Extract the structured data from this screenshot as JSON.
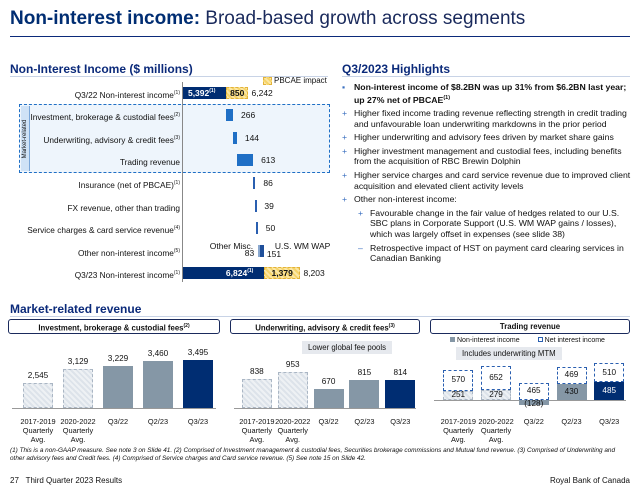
{
  "header": {
    "title_bold": "Non-interest income:",
    "title_rest": " Broad-based growth across segments"
  },
  "left": {
    "section": "Non-Interest Income ($ millions)",
    "pbcae_legend": "PBCAE impact",
    "market_related": "Market-related"
  },
  "highlights": {
    "section": "Q3/2023 Highlights",
    "items": [
      {
        "marker": "▪",
        "text": "Non-interest income of $8.2BN was up 31% from $6.2BN last year; up 27% net of PBCAE",
        "sup": "(1)",
        "bold": true,
        "level": 0
      },
      {
        "marker": "+",
        "text": "Higher fixed income trading revenue reflecting strength in credit trading and unfavourable loan underwriting markdowns in the prior period",
        "level": 0
      },
      {
        "marker": "+",
        "text": "Higher underwriting and advisory fees driven by market share gains",
        "level": 0
      },
      {
        "marker": "+",
        "text": "Higher investment management and custodial fees, including benefits from the acquisition of RBC Brewin Dolphin",
        "level": 0
      },
      {
        "marker": "+",
        "text": "Higher service charges and card service revenue due to improved client acquisition and elevated client activity levels",
        "level": 0
      },
      {
        "marker": "+",
        "text": "Other non-interest income:",
        "level": 0
      },
      {
        "marker": "+",
        "text": "Favourable change in the fair value of hedges related to our U.S. SBC plans in Corporate Support (U.S. WM WAP gains / losses), which was largely offset in expenses (see slide 38)",
        "level": 1
      },
      {
        "marker": "–",
        "text": "Retrospective impact of HST on payment card clearing services in Canadian Banking",
        "level": 1
      }
    ]
  },
  "market": {
    "section": "Market-related revenue"
  },
  "footnote": "(1) This is a non-GAAP measure. See note 3 on Slide 41. (2) Comprised of Investment management & custodial fees, Securities brokerage commissions and Mutual fund revenue. (3) Comprised of Underwriting and other advisory fees and Credit fees. (4) Comprised of Service charges and Card service revenue. (5) See note 15 on Slide 42.",
  "footer": {
    "page": "27",
    "deck": "Third Quarter 2023 Results",
    "company": "Royal Bank of Canada"
  },
  "colors": {
    "navy": "#002d72",
    "blue": "#1f6fc5",
    "gray": "#8597a6",
    "pbcae": "#f6d46a"
  },
  "chart_data": [
    {
      "type": "waterfall",
      "title": "Non-Interest Income ($ millions)",
      "start": {
        "label": "Q3/22 Non-interest income",
        "value": 5392,
        "value_label": "5,392",
        "sup": "(1)",
        "pbcae": 850,
        "pbcae_label": "850",
        "total_label": "6,242"
      },
      "steps": [
        {
          "label": "Investment, brokerage & custodial fees",
          "sup": "(2)",
          "value": 266,
          "value_label": "266",
          "group": "market"
        },
        {
          "label": "Underwriting, advisory & credit fees",
          "sup": "(3)",
          "value": 144,
          "value_label": "144",
          "group": "market"
        },
        {
          "label": "Trading revenue",
          "sup": "",
          "value": 613,
          "value_label": "613",
          "group": "market"
        },
        {
          "label": "Insurance (net of PBCAE)",
          "sup": "(1)",
          "value": 86,
          "value_label": "86"
        },
        {
          "label": "FX revenue, other than trading",
          "sup": "",
          "value": 39,
          "value_label": "39"
        },
        {
          "label": "Service charges & card service revenue",
          "sup": "(4)",
          "value": 50,
          "value_label": "50"
        },
        {
          "label": "Other non-interest income",
          "sup": "(5)",
          "value": 234,
          "parts": [
            {
              "label": "Other Misc.",
              "value": 83,
              "value_label": "83"
            },
            {
              "label": "U.S. WM WAP",
              "value": 151,
              "value_label": "151"
            }
          ]
        }
      ],
      "end": {
        "label": "Q3/23 Non-interest income",
        "value": 6824,
        "value_label": "6,824",
        "sup": "(1)",
        "pbcae": 1379,
        "pbcae_label": "1,379",
        "total_label": "8,203"
      }
    },
    {
      "type": "bar",
      "title": "Investment, brokerage & custodial fees",
      "title_sup": "(2)",
      "categories": [
        "2017-2019 Quarterly Avg.",
        "2020-2022 Quarterly Avg.",
        "Q3/22",
        "Q2/23",
        "Q3/23"
      ],
      "values": [
        2545,
        3129,
        3229,
        3460,
        3495
      ],
      "labels": [
        "2,545",
        "3,129",
        "3,229",
        "3,460",
        "3,495"
      ]
    },
    {
      "type": "bar",
      "title": "Underwriting, advisory & credit fees",
      "title_sup": "(3)",
      "categories": [
        "2017-2019 Quarterly Avg.",
        "2020-2022 Quarterly Avg.",
        "Q3/22",
        "Q2/23",
        "Q3/23"
      ],
      "values": [
        838,
        953,
        670,
        815,
        814
      ],
      "labels": [
        "838",
        "953",
        "670",
        "815",
        "814"
      ],
      "annotation": "Lower global fee pools"
    },
    {
      "type": "stacked-bar",
      "title": "Trading revenue",
      "categories": [
        "2017-2019 Quarterly Avg.",
        "2020-2022 Quarterly Avg.",
        "Q3/22",
        "Q2/23",
        "Q3/23"
      ],
      "series": [
        {
          "name": "Non-interest income",
          "values": [
            251,
            279,
            -128,
            430,
            485
          ],
          "labels": [
            "251",
            "279",
            "(128)",
            "430",
            "485"
          ]
        },
        {
          "name": "Net interest income",
          "values": [
            570,
            652,
            465,
            469,
            510
          ],
          "labels": [
            "570",
            "652",
            "465",
            "469",
            "510"
          ]
        }
      ],
      "annotation": "Includes underwriting MTM"
    }
  ]
}
